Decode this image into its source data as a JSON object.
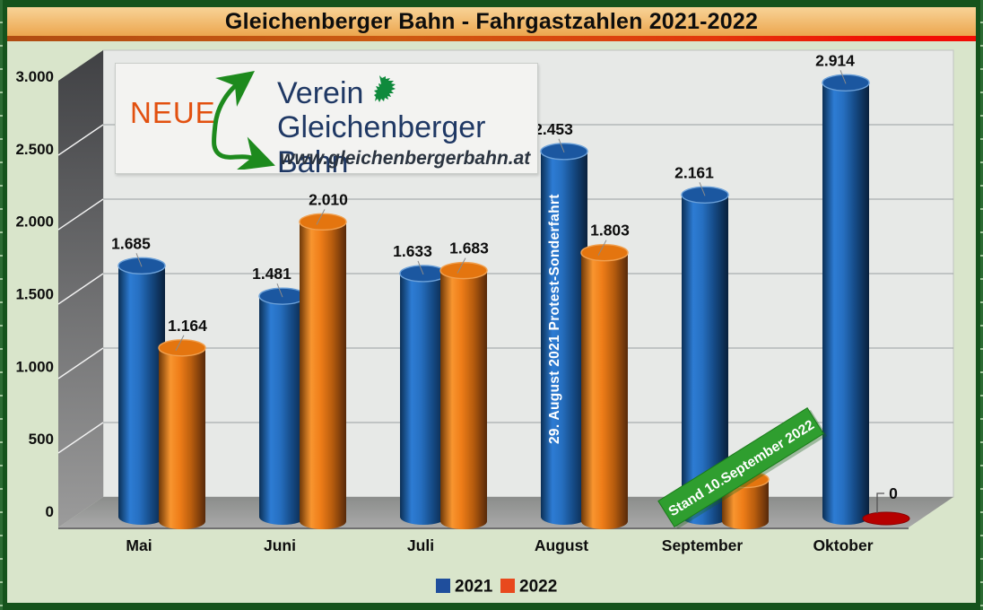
{
  "title_bar": {
    "text": "Gleichenberger Bahn - Fahrgastzahlen 2021-2022",
    "bg_top": "#f8d397",
    "bg_bottom": "#eca64e",
    "underline_colors": [
      "#b04c12",
      "#f20d05"
    ]
  },
  "frame": {
    "border_color": "#15531c",
    "background_color": "#d9e5cb"
  },
  "logo": {
    "neue": "NEUE",
    "line1": "Verein",
    "line2": "Gleichenberger Bahn",
    "url": "www.gleichenbergerbahn.at",
    "neue_color": "#e2500f",
    "text_color": "#1f3864",
    "arrow_color": "#1d8a1d",
    "panther_color": "#0f8a3c"
  },
  "chart_data": {
    "type": "bar",
    "style": "3d-cylinder",
    "title": "Gleichenberger Bahn - Fahrgastzahlen 2021-2022",
    "categories": [
      "Mai",
      "Juni",
      "Juli",
      "August",
      "September",
      "Oktober"
    ],
    "series": [
      {
        "name": "2021",
        "color": "#1f5fae",
        "values": [
          1685,
          1481,
          1633,
          2453,
          2161,
          2914
        ],
        "labels": [
          "1.685",
          "1.481",
          "1.633",
          "2.453",
          "2.161",
          "2.914"
        ]
      },
      {
        "name": "2022",
        "color": "#ed7d17",
        "values": [
          1164,
          2010,
          1683,
          1803,
          280,
          0
        ],
        "labels": [
          "1.164",
          "2.010",
          "1.683",
          "1.803",
          "",
          "0"
        ]
      }
    ],
    "ylim": [
      0,
      3000
    ],
    "yticks": [
      {
        "v": 0,
        "label": "0"
      },
      {
        "v": 500,
        "label": "500"
      },
      {
        "v": 1000,
        "label": "1.000"
      },
      {
        "v": 1500,
        "label": "1.500"
      },
      {
        "v": 2000,
        "label": "2.000"
      },
      {
        "v": 2500,
        "label": "2.500"
      },
      {
        "v": 3000,
        "label": "3.000"
      }
    ],
    "grid": true,
    "annotations": {
      "bar_note": {
        "text": "29. August 2021 Protest-Sonderfahrt",
        "color": "#ffffff",
        "target_category": "August",
        "target_series": "2021"
      },
      "banner": {
        "text": "Stand 10.September 2022",
        "bg": "#2f9e2f",
        "color": "#ffffff"
      },
      "zero_marker": {
        "label": "0",
        "color": "#b60000",
        "target_category": "Oktober",
        "target_series": "2022"
      }
    },
    "legend": {
      "position": "bottom",
      "entries": [
        {
          "label": "2021",
          "color": "#1f4e9c"
        },
        {
          "label": "2022",
          "color": "#e8491d"
        }
      ]
    }
  }
}
